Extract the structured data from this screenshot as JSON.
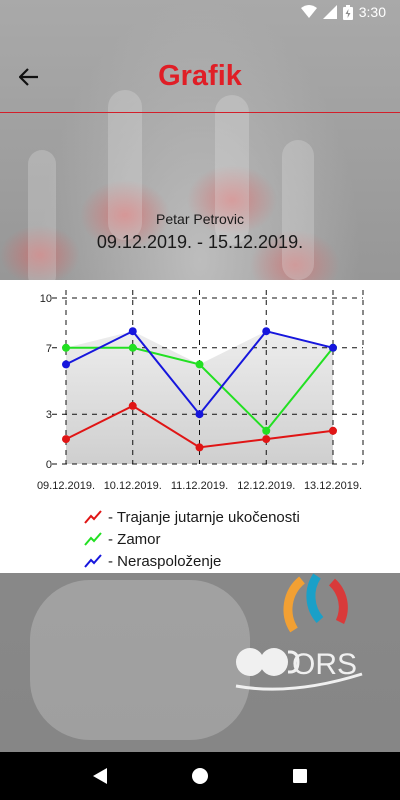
{
  "status_bar": {
    "time": "3:30"
  },
  "header": {
    "title": "Grafik"
  },
  "user": {
    "name": "Petar Petrovic",
    "date_range": "09.12.2019. - 15.12.2019."
  },
  "chart_data": {
    "type": "line",
    "categories": [
      "09.12.2019.",
      "10.12.2019.",
      "11.12.2019.",
      "12.12.2019.",
      "13.12.2019."
    ],
    "y_ticks": [
      "10",
      "7",
      "3",
      "0"
    ],
    "ylim": [
      0,
      10
    ],
    "grid": true,
    "series": [
      {
        "name": "- Trajanje jutarnje ukočenosti",
        "color": "#e01515",
        "values": [
          1.5,
          3.5,
          1,
          1.5,
          2
        ]
      },
      {
        "name": "- Zamor",
        "color": "#22e022",
        "values": [
          7,
          7,
          6,
          2,
          7
        ]
      },
      {
        "name": "- Neraspoloženje",
        "color": "#1616dd",
        "values": [
          6,
          8,
          3,
          8,
          7
        ]
      }
    ]
  },
  "colors": {
    "accent": "#e01e26",
    "navbar": "#000000"
  },
  "icons": {
    "back": "arrow-left-icon",
    "home": "home-circle-icon",
    "recent": "recent-square-icon",
    "nav_back": "back-triangle-icon"
  }
}
